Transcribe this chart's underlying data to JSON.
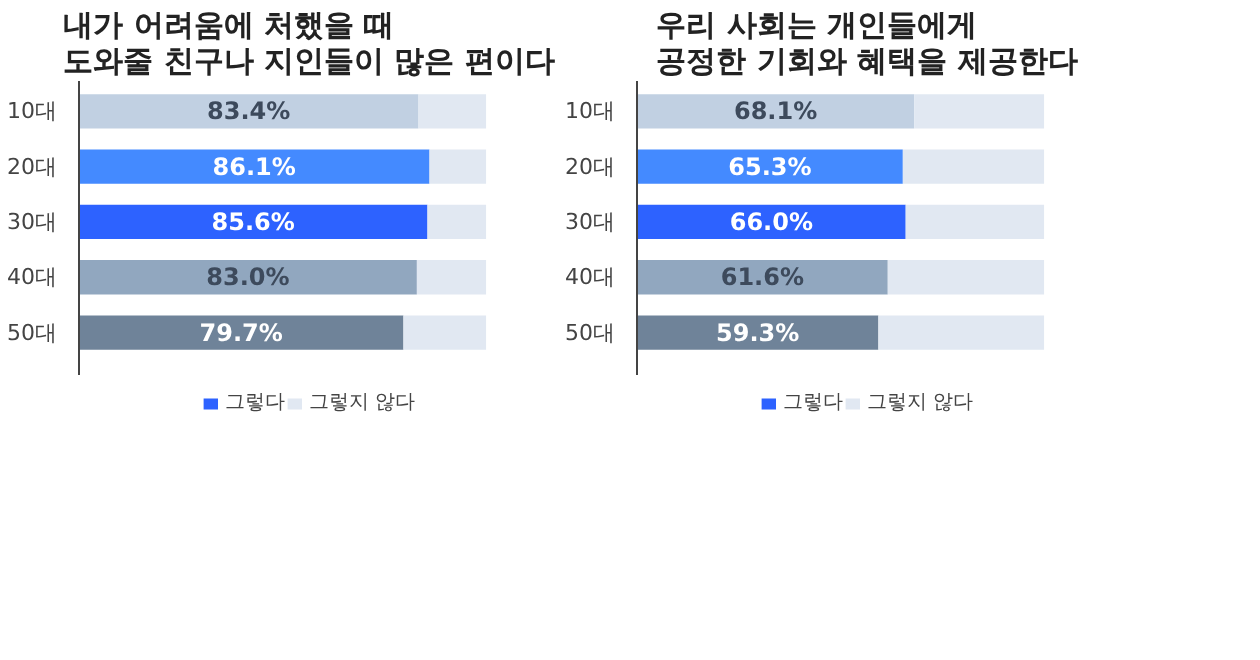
{
  "chart_data": [
    {
      "type": "bar",
      "orientation": "horizontal",
      "stacked": true,
      "title": "내가 어려움에 처했을 때\n도와줄 친구나 지인들이 많은 편이다",
      "categories": [
        "10대",
        "20대",
        "30대",
        "40대",
        "50대"
      ],
      "legend": "bottom",
      "grid": false,
      "series": [
        {
          "name": "그렇다",
          "colors": [
            "#c1d0e2",
            "#448aff",
            "#2d62ff",
            "#91a7bf",
            "#6f8399"
          ],
          "values": [
            83.4,
            86.1,
            85.6,
            83.0,
            79.7
          ],
          "value_labels": [
            "83.4%",
            "86.1%",
            "85.6%",
            "83.0%",
            "79.7%"
          ]
        },
        {
          "name": "그렇지 않다",
          "color": "#e1e8f2",
          "values": [
            16.6,
            13.9,
            14.4,
            17.0,
            20.3
          ]
        }
      ]
    },
    {
      "type": "bar",
      "orientation": "horizontal",
      "stacked": true,
      "title": "우리 사회는 개인들에게\n공정한 기회와 혜택을 제공한다",
      "categories": [
        "10대",
        "20대",
        "30대",
        "40대",
        "50대"
      ],
      "legend": "bottom",
      "grid": false,
      "series": [
        {
          "name": "그렇다",
          "colors": [
            "#c1d0e2",
            "#448aff",
            "#2d62ff",
            "#91a7bf",
            "#6f8399"
          ],
          "values": [
            68.1,
            65.3,
            66.0,
            61.6,
            59.3
          ],
          "value_labels": [
            "68.1%",
            "65.3%",
            "66.0%",
            "61.6%",
            "59.3%"
          ]
        },
        {
          "name": "그렇지 않다",
          "color": "#e1e8f2",
          "values": [
            31.9,
            34.7,
            34.0,
            38.4,
            40.7
          ]
        }
      ]
    }
  ]
}
